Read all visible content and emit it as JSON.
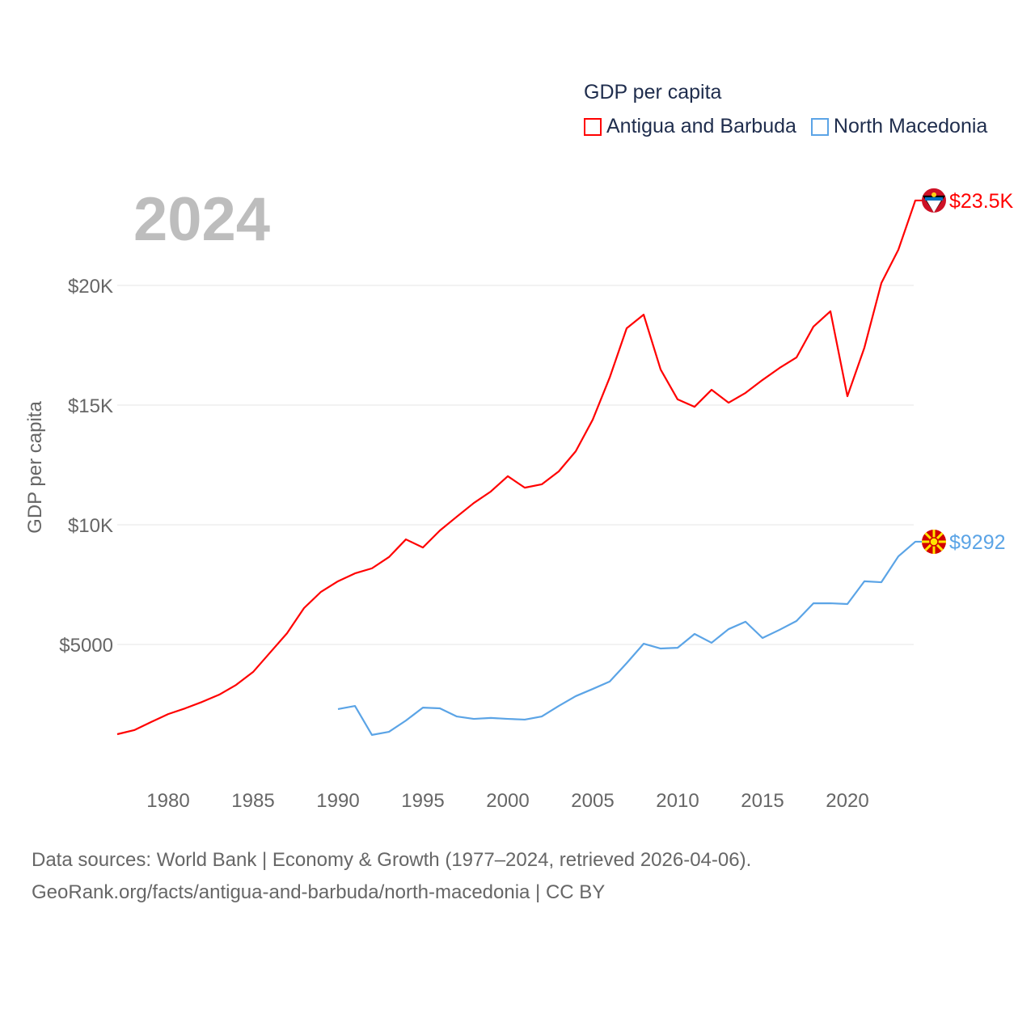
{
  "chart_data": {
    "type": "line",
    "title": "GDP per capita",
    "year_label": "2024",
    "ylabel": "GDP per capita",
    "xlabel": "",
    "xlim": [
      1977,
      2024
    ],
    "ylim": [
      0,
      25000
    ],
    "x_ticks": [
      1980,
      1985,
      1990,
      1995,
      2000,
      2005,
      2010,
      2015,
      2020
    ],
    "y_ticks": [
      {
        "value": 5000,
        "label": "$5000"
      },
      {
        "value": 10000,
        "label": "$10K"
      },
      {
        "value": 15000,
        "label": "$15K"
      },
      {
        "value": 20000,
        "label": "$20K"
      }
    ],
    "grid": true,
    "legend_position": "top-right",
    "series": [
      {
        "name": "Antigua and Barbuda",
        "color": "#ff0000",
        "end_label": "$23.5K",
        "flag": "antigua-flag",
        "start_year": 1977,
        "values": [
          1250,
          1420,
          1760,
          2090,
          2330,
          2600,
          2900,
          3310,
          3850,
          4660,
          5470,
          6520,
          7200,
          7640,
          7970,
          8180,
          8650,
          9390,
          9050,
          9760,
          10340,
          10910,
          11390,
          12030,
          11550,
          11690,
          12230,
          13070,
          14390,
          16150,
          18210,
          18780,
          16490,
          15240,
          14930,
          15640,
          15100,
          15510,
          16050,
          16550,
          16990,
          18280,
          18920,
          15370,
          17400,
          20100,
          21490,
          23550
        ]
      },
      {
        "name": "North Macedonia",
        "color": "#5ba4e6",
        "end_label": "$9292",
        "flag": "north-macedonia-flag",
        "start_year": 1990,
        "values": [
          2300,
          2430,
          1220,
          1350,
          1820,
          2360,
          2330,
          1990,
          1890,
          1930,
          1890,
          1860,
          1990,
          2430,
          2840,
          3140,
          3450,
          4220,
          5030,
          4830,
          4860,
          5440,
          5070,
          5640,
          5950,
          5270,
          5610,
          5980,
          6720,
          6720,
          6690,
          7640,
          7600,
          8680,
          9292
        ]
      }
    ]
  },
  "source": {
    "line1": "Data sources: World Bank | Economy & Growth (1977–2024, retrieved 2026-04-06).",
    "line2": "GeoRank.org/facts/antigua-and-barbuda/north-macedonia | CC BY"
  }
}
